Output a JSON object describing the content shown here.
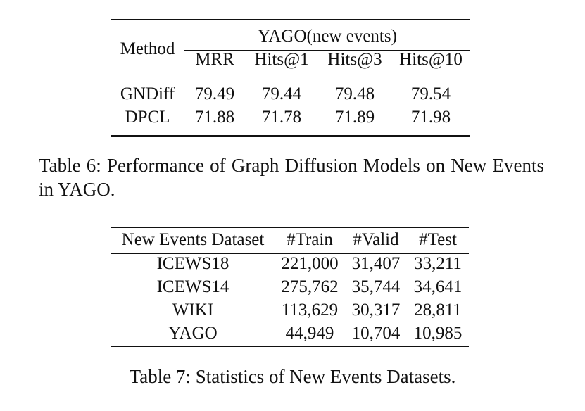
{
  "table6": {
    "method_header": "Method",
    "group_header": "YAGO(new events)",
    "columns": [
      "MRR",
      "Hits@1",
      "Hits@3",
      "Hits@10"
    ],
    "rows": [
      {
        "method": "GNDiff",
        "values": [
          "79.49",
          "79.44",
          "79.48",
          "79.54"
        ]
      },
      {
        "method": "DPCL",
        "values": [
          "71.88",
          "71.78",
          "71.89",
          "71.98"
        ]
      }
    ],
    "caption": "Table 6: Performance of Graph Diffusion Models on New Events in YAGO."
  },
  "table7": {
    "headers": [
      "New Events Dataset",
      "#Train",
      "#Valid",
      "#Test"
    ],
    "rows": [
      [
        "ICEWS18",
        "221,000",
        "31,407",
        "33,211"
      ],
      [
        "ICEWS14",
        "275,762",
        "35,744",
        "34,641"
      ],
      [
        "WIKI",
        "113,629",
        "30,317",
        "28,811"
      ],
      [
        "YAGO",
        "44,949",
        "10,704",
        "10,985"
      ]
    ],
    "caption": "Table 7: Statistics of New Events Datasets."
  }
}
